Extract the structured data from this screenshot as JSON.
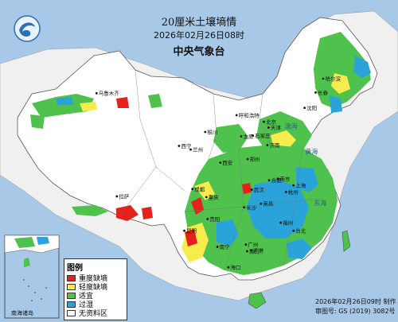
{
  "title": "20厘米土壤墒情",
  "datetime": "2026年02月26日08时",
  "agency": "中央气象台",
  "legend": {
    "title": "图例",
    "items": [
      {
        "label": "重度缺墒",
        "color": "#e4211b"
      },
      {
        "label": "轻度缺墒",
        "color": "#f7ec4b"
      },
      {
        "label": "适宜",
        "color": "#4fc24e"
      },
      {
        "label": "过湿",
        "color": "#29a3d9"
      },
      {
        "label": "无资料区",
        "color": "#ffffff"
      }
    ]
  },
  "footer": {
    "made": "2026年02月26日09时 制作",
    "approval": "审图号: GS (2019) 3082号"
  },
  "inset_label": "南海诸岛",
  "places": [
    {
      "name": "哈尔滨",
      "lon": 126.6,
      "lat": 45.8
    },
    {
      "name": "长春",
      "lon": 125.3,
      "lat": 43.9
    },
    {
      "name": "沈阳",
      "lon": 123.4,
      "lat": 41.8
    },
    {
      "name": "乌鲁木齐",
      "lon": 87.6,
      "lat": 43.8
    },
    {
      "name": "呼和浩特",
      "lon": 111.7,
      "lat": 40.8
    },
    {
      "name": "北京",
      "lon": 116.4,
      "lat": 39.9
    },
    {
      "name": "天津",
      "lon": 117.2,
      "lat": 39.1
    },
    {
      "name": "石家庄",
      "lon": 114.5,
      "lat": 38.0
    },
    {
      "name": "太原",
      "lon": 112.5,
      "lat": 37.9
    },
    {
      "name": "银川",
      "lon": 106.3,
      "lat": 38.5
    },
    {
      "name": "济南",
      "lon": 117.0,
      "lat": 36.7
    },
    {
      "name": "西宁",
      "lon": 101.8,
      "lat": 36.6
    },
    {
      "name": "兰州",
      "lon": 103.8,
      "lat": 36.1
    },
    {
      "name": "郑州",
      "lon": 113.6,
      "lat": 34.8
    },
    {
      "name": "西安",
      "lon": 108.9,
      "lat": 34.3
    },
    {
      "name": "南京",
      "lon": 118.8,
      "lat": 32.1
    },
    {
      "name": "合肥",
      "lon": 117.3,
      "lat": 31.9
    },
    {
      "name": "上海",
      "lon": 121.5,
      "lat": 31.2
    },
    {
      "name": "拉萨",
      "lon": 91.1,
      "lat": 29.7
    },
    {
      "name": "成都",
      "lon": 104.1,
      "lat": 30.7
    },
    {
      "name": "武汉",
      "lon": 114.3,
      "lat": 30.6
    },
    {
      "name": "杭州",
      "lon": 120.2,
      "lat": 30.3
    },
    {
      "name": "重庆",
      "lon": 106.5,
      "lat": 29.6
    },
    {
      "name": "南昌",
      "lon": 115.9,
      "lat": 28.7
    },
    {
      "name": "长沙",
      "lon": 113.0,
      "lat": 28.2
    },
    {
      "name": "贵阳",
      "lon": 106.7,
      "lat": 26.6
    },
    {
      "name": "福州",
      "lon": 119.3,
      "lat": 26.1
    },
    {
      "name": "昆明",
      "lon": 102.7,
      "lat": 25.0
    },
    {
      "name": "台北",
      "lon": 121.5,
      "lat": 25.0
    },
    {
      "name": "广州",
      "lon": 113.3,
      "lat": 23.1
    },
    {
      "name": "南宁",
      "lon": 108.4,
      "lat": 22.8
    },
    {
      "name": "香港",
      "lon": 114.2,
      "lat": 22.3
    },
    {
      "name": "澳门",
      "lon": 113.5,
      "lat": 22.2
    },
    {
      "name": "海口",
      "lon": 110.3,
      "lat": 20.0
    }
  ],
  "seas": [
    {
      "name": "黄海",
      "lon": 123.5,
      "lat": 35.5
    },
    {
      "name": "东海",
      "lon": 125.0,
      "lat": 28.5
    },
    {
      "name": "渤海",
      "lon": 120.0,
      "lat": 39.0
    }
  ],
  "colors": {
    "sea": "#a8c8e8",
    "land": "#ffffff",
    "border": "#555555",
    "text": "#111111"
  }
}
